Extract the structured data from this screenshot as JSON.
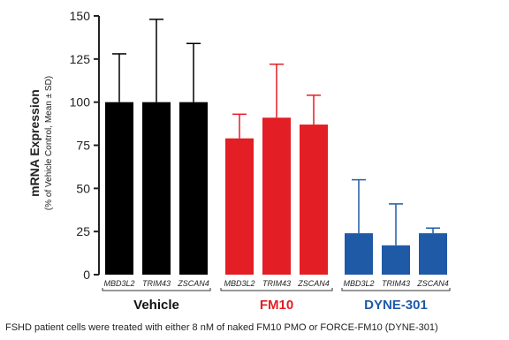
{
  "chart_data": {
    "type": "bar",
    "ylabel": "mRNA Expression",
    "ylabel_sub": "(% of Vehicle Control, Mean ± SD)",
    "ylim": [
      0,
      150
    ],
    "yticks": [
      0,
      25,
      50,
      75,
      100,
      125,
      150
    ],
    "grid": false,
    "groups": [
      {
        "name": "Vehicle",
        "color": "#000000",
        "label_color": "#111111",
        "categories": [
          "MBD3L2",
          "TRIM43",
          "ZSCAN4"
        ],
        "values": [
          100,
          100,
          100
        ],
        "errors": [
          28,
          48,
          34
        ]
      },
      {
        "name": "FM10",
        "color": "#e31e24",
        "label_color": "#e31e24",
        "categories": [
          "MBD3L2",
          "TRIM43",
          "ZSCAN4"
        ],
        "values": [
          79,
          91,
          87
        ],
        "errors": [
          14,
          31,
          17
        ]
      },
      {
        "name": "DYNE-301",
        "color": "#1f5aa6",
        "label_color": "#1f5aa6",
        "categories": [
          "MBD3L2",
          "TRIM43",
          "ZSCAN4"
        ],
        "values": [
          24,
          17,
          24
        ],
        "errors": [
          31,
          24,
          3
        ]
      }
    ],
    "caption": "FSHD patient cells were treated with either 8 nM of naked FM10 PMO or FORCE-FM10 (DYNE-301)"
  }
}
